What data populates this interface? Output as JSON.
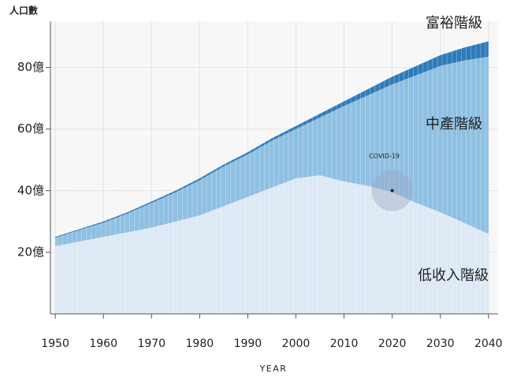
{
  "chart_data": {
    "type": "stacked-area",
    "y_label": "人口數",
    "x_label": "YEAR",
    "x": [
      1950,
      1955,
      1960,
      1965,
      1970,
      1975,
      1980,
      1985,
      1990,
      1995,
      2000,
      2005,
      2010,
      2015,
      2020,
      2025,
      2030,
      2035,
      2040
    ],
    "series": [
      {
        "name": "低收入階級",
        "color": "#dde9f5",
        "values": [
          22,
          23.5,
          25,
          26.5,
          28,
          30,
          32,
          35,
          38,
          41,
          44,
          45,
          43,
          41.5,
          39.5,
          36,
          33,
          29.5,
          26
        ]
      },
      {
        "name": "中產階級",
        "color": "#8fc0e2",
        "values": [
          2.7,
          3.7,
          4.6,
          6.1,
          8,
          9.5,
          11.4,
          12.9,
          13.8,
          15.2,
          16,
          18.8,
          24.5,
          29.5,
          35,
          41.5,
          47.5,
          52.8,
          57.5
        ]
      },
      {
        "name": "富裕階級",
        "color": "#2f7bb9",
        "values": [
          0.3,
          0.3,
          0.4,
          0.4,
          0.5,
          0.5,
          0.6,
          0.6,
          0.7,
          0.8,
          1,
          1.2,
          1.5,
          2,
          2.5,
          3,
          3.5,
          4.2,
          5
        ]
      }
    ],
    "xlim": [
      1949,
      2042
    ],
    "ylim": [
      0,
      95
    ],
    "xticks": [
      1950,
      1960,
      1970,
      1980,
      1990,
      2000,
      2010,
      2020,
      2030,
      2040
    ],
    "yticks": [
      {
        "value": 20,
        "label": "20億"
      },
      {
        "value": 40,
        "label": "40億"
      },
      {
        "value": 60,
        "label": "60億"
      },
      {
        "value": 80,
        "label": "80億"
      }
    ],
    "grid": true,
    "annotation": {
      "text": "COVID-19",
      "x": 2020,
      "y": 40
    }
  }
}
